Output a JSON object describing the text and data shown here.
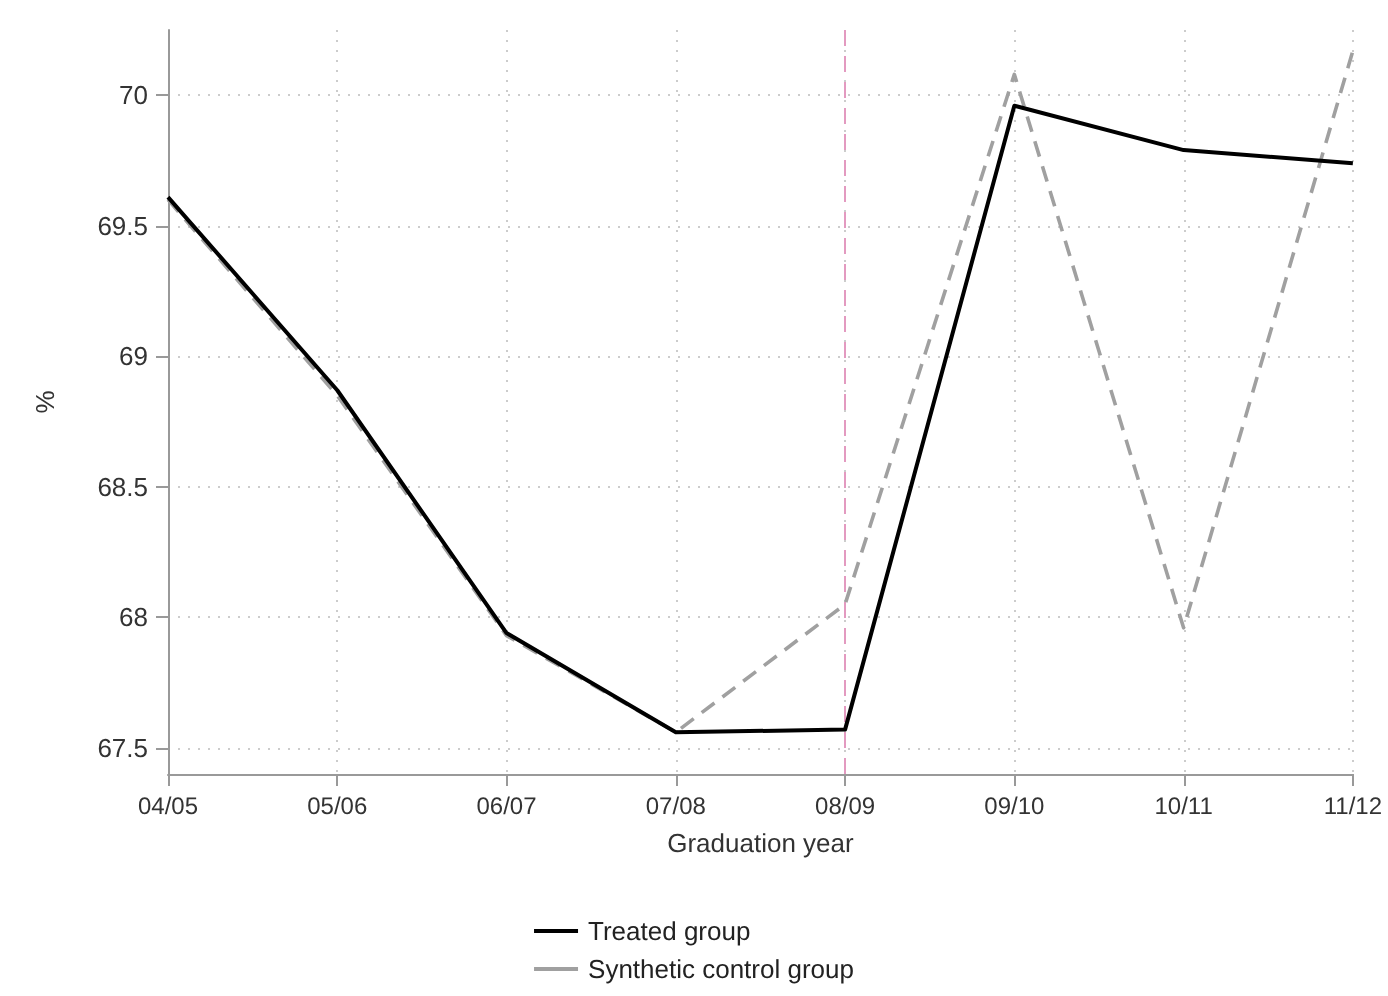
{
  "chart_data": {
    "type": "line",
    "xlabel": "Graduation year",
    "ylabel": "%",
    "categories": [
      "04/05",
      "05/06",
      "06/07",
      "07/08",
      "08/09",
      "09/10",
      "10/11",
      "11/12"
    ],
    "series": [
      {
        "name": "Treated group",
        "color": "#000000",
        "line_style": "solid",
        "values": [
          69.61,
          68.87,
          67.94,
          67.56,
          67.57,
          69.96,
          69.79,
          69.74
        ]
      },
      {
        "name": "Synthetic control group",
        "color": "#a0a0a0",
        "line_style": "dashed",
        "values": [
          69.6,
          68.85,
          67.93,
          67.56,
          68.05,
          70.08,
          67.96,
          70.17
        ]
      }
    ],
    "ylim": [
      67.4,
      70.25
    ],
    "yticks": [
      67.5,
      68,
      68.5,
      69,
      69.5,
      70
    ],
    "ref_lines": [
      {
        "axis": "x",
        "value": "08/09",
        "color": "#e39ac0",
        "line_style": "dashed"
      }
    ],
    "grid": true,
    "legend": "bottom",
    "marker": "none"
  }
}
